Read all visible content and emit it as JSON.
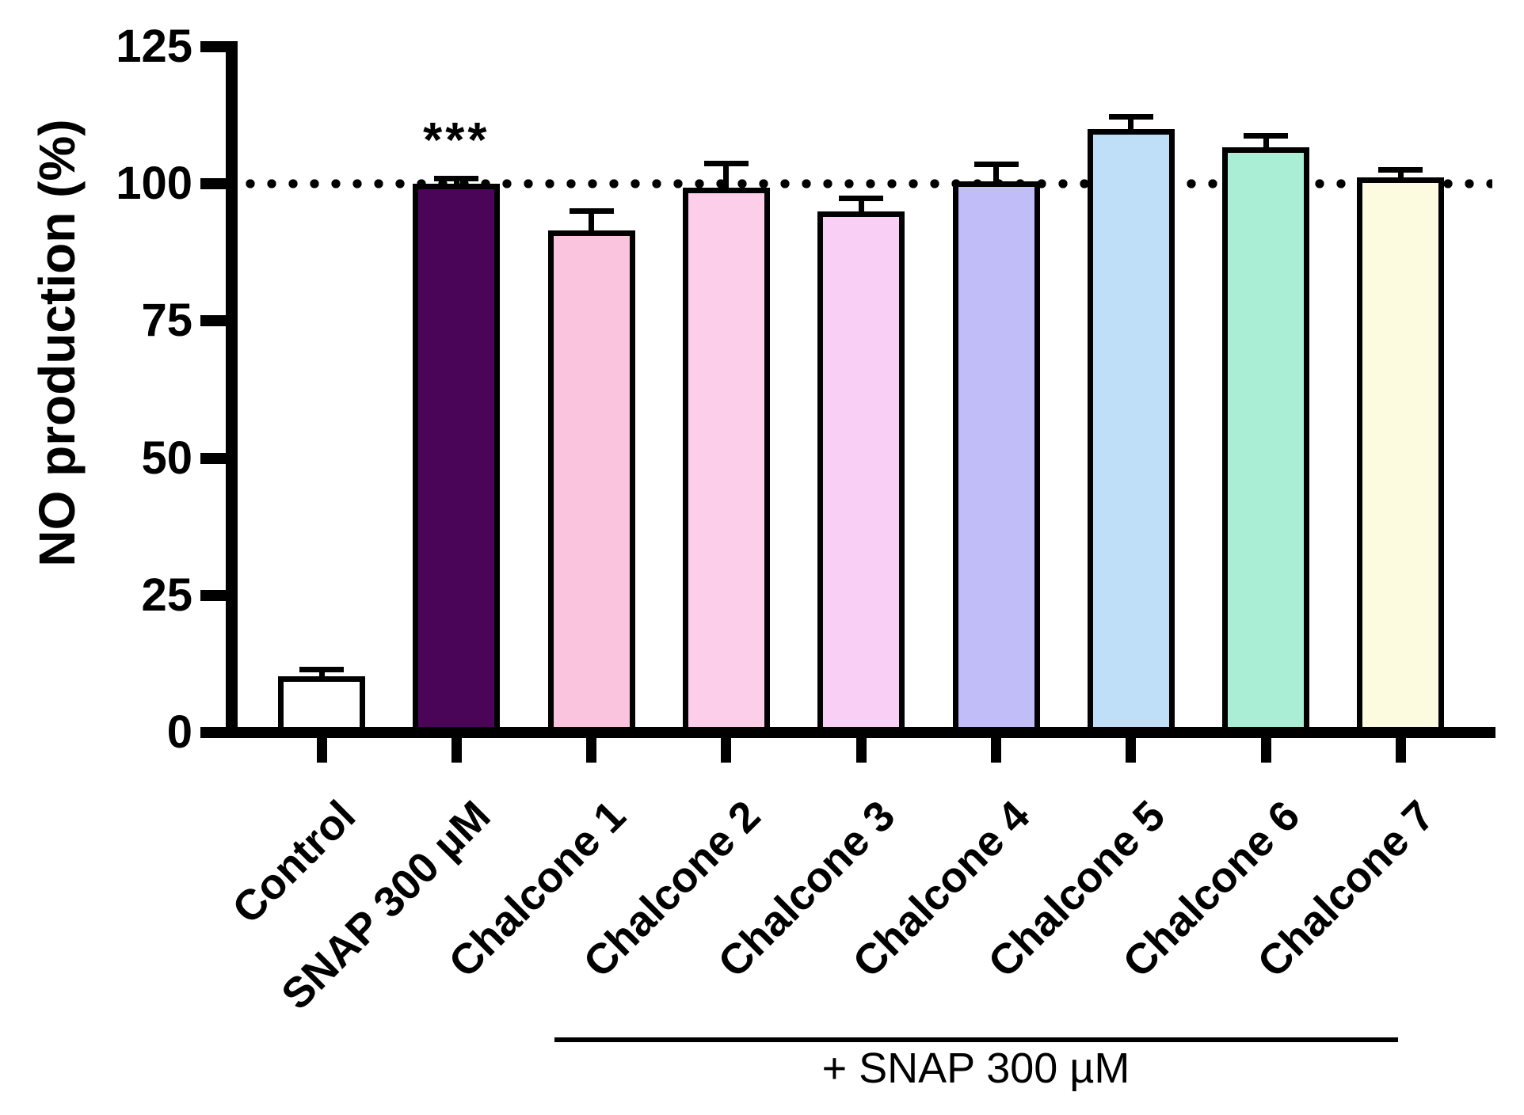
{
  "chart_data": {
    "type": "bar",
    "title": "",
    "xlabel": "",
    "ylabel": "NO production (%)",
    "ylim": [
      0,
      125
    ],
    "yticks": [
      0,
      25,
      50,
      75,
      100,
      125
    ],
    "grid": false,
    "legend": false,
    "reference_line": {
      "y": 100,
      "style": "dotted"
    },
    "categories": [
      "Control",
      "SNAP 300 µM",
      "Chalcone 1",
      "Chalcone 2",
      "Chalcone 3",
      "Chalcone 4",
      "Chalcone 5",
      "Chalcone 6",
      "Chalcone 7"
    ],
    "values": [
      10.3,
      100.0,
      91.5,
      99.3,
      95.0,
      100.5,
      109.9,
      106.7,
      101.2
    ],
    "errors_plus": [
      1.2,
      0.9,
      3.6,
      4.4,
      2.3,
      3.0,
      2.3,
      2.1,
      1.4
    ],
    "bar_fill_colors": [
      "#FFFFFF",
      "#4A0559",
      "#FAC4DF",
      "#FCCEEA",
      "#F9CFF5",
      "#C0BDF8",
      "#BFDEF8",
      "#ABEED6",
      "#FDFBDF"
    ],
    "bar_edge_color": "#000000",
    "significance": {
      "category": "SNAP 300 µM",
      "category_index": 1,
      "label": "***"
    },
    "group_annotation": {
      "label": "+ SNAP 300 µM",
      "applies_to": [
        "Chalcone 1",
        "Chalcone 2",
        "Chalcone 3",
        "Chalcone 4",
        "Chalcone 5",
        "Chalcone 6",
        "Chalcone 7"
      ]
    }
  }
}
